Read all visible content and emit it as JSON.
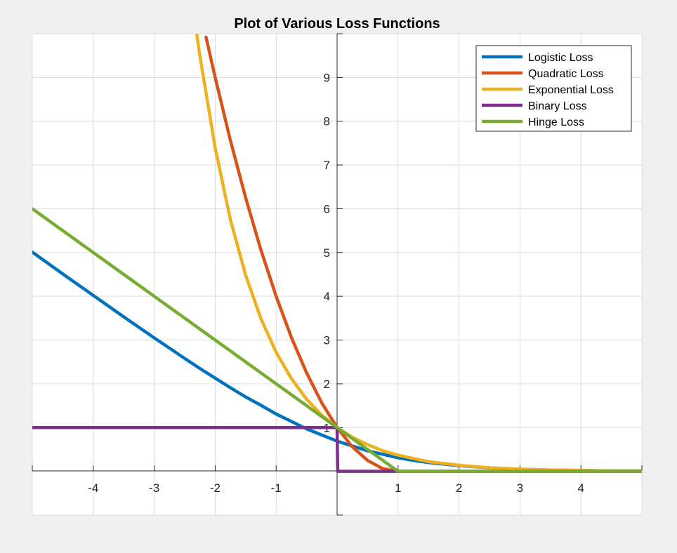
{
  "chart_data": {
    "type": "line",
    "title": "Plot of Various Loss Functions",
    "xlabel": "",
    "ylabel": "",
    "xlim": [
      -5,
      5
    ],
    "ylim": [
      -1,
      10
    ],
    "xticks": [
      -4,
      -3,
      -2,
      -1,
      1,
      2,
      3,
      4
    ],
    "yticks": [
      1,
      2,
      3,
      4,
      5,
      6,
      7,
      8,
      9
    ],
    "xtick_labels": [
      "-4",
      "-3",
      "-2",
      "-1",
      "1",
      "2",
      "3",
      "4"
    ],
    "ytick_labels": [
      "1",
      "2",
      "3",
      "4",
      "5",
      "6",
      "7",
      "8",
      "9"
    ],
    "grid": true,
    "legend_position": "top-right",
    "x": [
      -5,
      -4.5,
      -4,
      -3.5,
      -3,
      -2.5,
      -2.25,
      -2,
      -1.75,
      -1.5,
      -1.25,
      -1,
      -0.75,
      -0.5,
      -0.25,
      0,
      0.25,
      0.5,
      0.75,
      1,
      1.25,
      1.5,
      2,
      2.5,
      3,
      3.5,
      4,
      4.5,
      5
    ],
    "series": [
      {
        "name": "Logistic Loss",
        "color": "#0072BD",
        "values": [
          5.01,
          4.51,
          4.02,
          3.53,
          3.05,
          2.58,
          2.35,
          2.13,
          1.91,
          1.7,
          1.51,
          1.31,
          1.14,
          0.97,
          0.83,
          0.69,
          0.58,
          0.47,
          0.39,
          0.31,
          0.25,
          0.2,
          0.13,
          0.08,
          0.05,
          0.03,
          0.02,
          0.01,
          0.01
        ]
      },
      {
        "name": "Quadratic Loss",
        "color": "#D95319",
        "x": [
          -2.15,
          -2,
          -1.75,
          -1.5,
          -1.25,
          -1,
          -0.75,
          -0.5,
          -0.25,
          0,
          0.25,
          0.5,
          0.75,
          1,
          2,
          3,
          4,
          5
        ],
        "values": [
          9.92,
          9,
          7.56,
          6.25,
          5.06,
          4,
          3.06,
          2.25,
          1.56,
          1,
          0.56,
          0.25,
          0.06,
          0,
          0,
          0,
          0,
          0
        ]
      },
      {
        "name": "Exponential Loss",
        "color": "#EDB120",
        "x": [
          -2.3,
          -2.25,
          -2,
          -1.75,
          -1.5,
          -1.25,
          -1,
          -0.75,
          -0.5,
          -0.25,
          0,
          0.25,
          0.5,
          0.75,
          1,
          1.5,
          2,
          2.5,
          3,
          3.5,
          4,
          4.5,
          5
        ],
        "values": [
          9.97,
          9.49,
          7.39,
          5.75,
          4.48,
          3.49,
          2.72,
          2.12,
          1.65,
          1.28,
          1,
          0.78,
          0.61,
          0.47,
          0.37,
          0.22,
          0.14,
          0.08,
          0.05,
          0.03,
          0.02,
          0.01,
          0.01
        ]
      },
      {
        "name": "Binary Loss",
        "color": "#7E2F8E",
        "x": [
          -5,
          0,
          0.01,
          5
        ],
        "values": [
          1,
          1,
          0,
          0
        ]
      },
      {
        "name": "Hinge Loss",
        "color": "#77AC30",
        "x": [
          -5,
          1,
          5
        ],
        "values": [
          6,
          0,
          0
        ]
      }
    ]
  }
}
